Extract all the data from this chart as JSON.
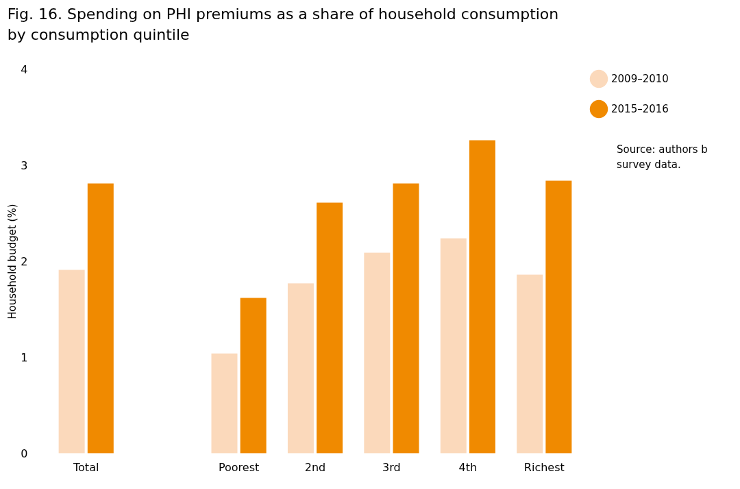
{
  "chart_data": {
    "type": "bar",
    "title": "Fig. 16. Spending on PHI premiums as a share of household consumption\nby consumption quintile",
    "ylabel": "Household budget (%)",
    "categories": [
      "Total",
      null,
      "Poorest",
      "2nd",
      "3rd",
      "4th",
      "Richest"
    ],
    "series": [
      {
        "name": "2009–2010",
        "color": "#fbd9bb",
        "values": [
          1.91,
          null,
          1.04,
          1.77,
          2.09,
          2.24,
          1.86
        ]
      },
      {
        "name": "2015–2016",
        "color": "#f08a00",
        "values": [
          2.81,
          null,
          1.62,
          2.61,
          2.81,
          3.26,
          2.84
        ]
      }
    ],
    "ylim": [
      0,
      4
    ],
    "yticks": [
      0,
      1,
      2,
      3,
      4
    ],
    "grid": false,
    "legend": "top right",
    "annotations": [
      "Source: authors b\nsurvey data."
    ]
  }
}
